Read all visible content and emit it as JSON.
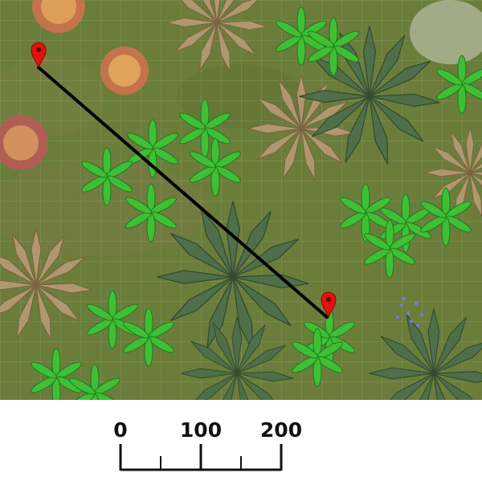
{
  "map": {
    "kind": "top-down jungle battle map",
    "grid": true,
    "route": {
      "color": "#000000",
      "markers": 2
    },
    "marker_color": "#e3120b"
  },
  "scale_bar": {
    "labels": [
      "0",
      "100",
      "200"
    ],
    "color": "#111111"
  }
}
